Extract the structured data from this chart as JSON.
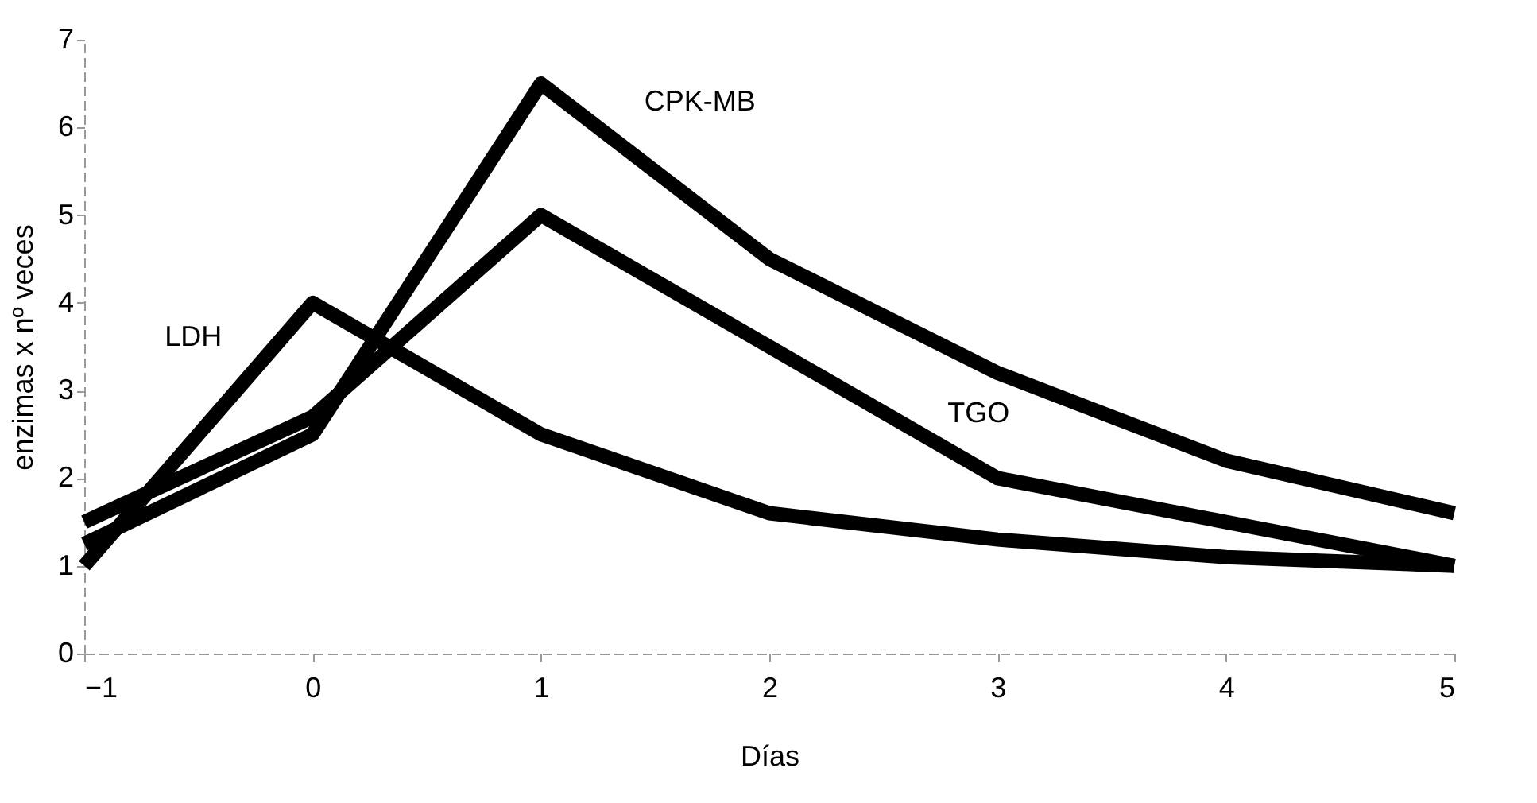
{
  "chart_data": {
    "type": "line",
    "xlabel": "Días",
    "ylabel": "enzimas x nº veces",
    "x": [
      -1,
      0,
      1,
      2,
      3,
      4,
      5
    ],
    "series": [
      {
        "name": "LDH",
        "color": "#000000",
        "values": [
          1.0,
          4.0,
          2.5,
          1.6,
          1.3,
          1.1,
          1.0
        ]
      },
      {
        "name": "CPK-MB",
        "color": "#000000",
        "values": [
          1.25,
          2.5,
          6.5,
          4.5,
          3.2,
          2.2,
          1.6
        ]
      },
      {
        "name": "TGO",
        "color": "#000000",
        "values": [
          1.5,
          2.7,
          5.0,
          3.5,
          2.0,
          1.5,
          1.0
        ]
      }
    ],
    "xlim": [
      -1,
      5
    ],
    "ylim": [
      0,
      7
    ],
    "xticks": [
      -1,
      0,
      1,
      2,
      3,
      4,
      5
    ],
    "yticks": [
      0,
      1,
      2,
      3,
      4,
      5,
      6,
      7
    ],
    "grid": false,
    "marker": "none",
    "line_style": "solid"
  }
}
